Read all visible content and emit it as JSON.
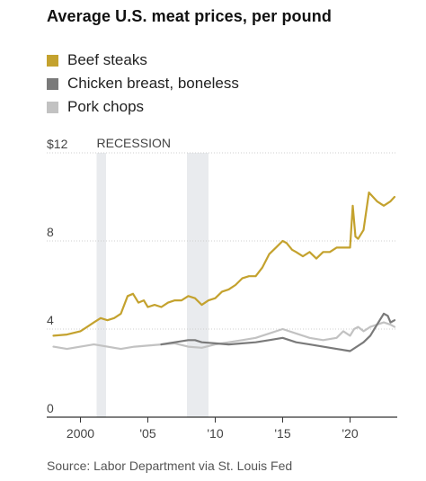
{
  "title": "Average U.S. meat prices, per pound",
  "source": "Source: Labor Department via St. Louis Fed",
  "legend": [
    {
      "label": "Beef steaks",
      "color": "#c4a22e"
    },
    {
      "label": "Chicken breast, boneless",
      "color": "#7a7a7a"
    },
    {
      "label": "Pork chops",
      "color": "#c2c2c2"
    }
  ],
  "chart_data": {
    "type": "line",
    "title": "Average U.S. meat prices, per pound",
    "xlabel": "",
    "ylabel": "",
    "xlim": [
      1997.5,
      2023.5
    ],
    "ylim": [
      0,
      12
    ],
    "y_ticks": [
      0,
      4,
      8,
      12
    ],
    "y_tick_labels": [
      "0",
      "4",
      "8",
      "$12"
    ],
    "x_ticks": [
      2000,
      2005,
      2010,
      2015,
      2020
    ],
    "x_tick_labels": [
      "2000",
      "'05",
      "'10",
      "'15",
      "'20"
    ],
    "grid": "horizontal",
    "recessions": [
      {
        "label": "RECESSION",
        "start": 2001.2,
        "end": 2001.9
      },
      {
        "label": "",
        "start": 2007.9,
        "end": 2009.5
      }
    ],
    "series": [
      {
        "name": "Beef steaks",
        "color": "#c4a22e",
        "x": [
          1998.0,
          1999.0,
          2000.0,
          2000.5,
          2001.0,
          2001.5,
          2002.0,
          2002.5,
          2003.0,
          2003.5,
          2003.9,
          2004.3,
          2004.7,
          2005.0,
          2005.5,
          2006.0,
          2006.5,
          2007.0,
          2007.5,
          2008.0,
          2008.5,
          2009.0,
          2009.5,
          2010.0,
          2010.5,
          2011.0,
          2011.5,
          2012.0,
          2012.5,
          2013.0,
          2013.5,
          2014.0,
          2014.5,
          2015.0,
          2015.3,
          2015.7,
          2016.0,
          2016.5,
          2017.0,
          2017.5,
          2018.0,
          2018.5,
          2019.0,
          2019.5,
          2020.0,
          2020.2,
          2020.4,
          2020.6,
          2021.0,
          2021.4,
          2021.7,
          2022.0,
          2022.5,
          2023.0,
          2023.3
        ],
        "values": [
          3.7,
          3.75,
          3.9,
          4.1,
          4.3,
          4.5,
          4.4,
          4.5,
          4.7,
          5.5,
          5.6,
          5.2,
          5.3,
          5.0,
          5.1,
          5.0,
          5.2,
          5.3,
          5.3,
          5.5,
          5.4,
          5.1,
          5.3,
          5.4,
          5.7,
          5.8,
          6.0,
          6.3,
          6.4,
          6.4,
          6.8,
          7.4,
          7.7,
          8.0,
          7.9,
          7.6,
          7.5,
          7.3,
          7.5,
          7.2,
          7.5,
          7.5,
          7.7,
          7.7,
          7.7,
          9.6,
          8.2,
          8.1,
          8.5,
          10.2,
          10.0,
          9.8,
          9.6,
          9.8,
          10.0
        ]
      },
      {
        "name": "Chicken breast, boneless",
        "color": "#7a7a7a",
        "x": [
          2006.0,
          2007.0,
          2008.0,
          2008.5,
          2009.0,
          2010.0,
          2011.0,
          2012.0,
          2013.0,
          2014.0,
          2015.0,
          2016.0,
          2017.0,
          2018.0,
          2019.0,
          2020.0,
          2021.0,
          2021.5,
          2022.0,
          2022.5,
          2022.8,
          2023.0,
          2023.3
        ],
        "values": [
          3.3,
          3.4,
          3.5,
          3.5,
          3.4,
          3.35,
          3.3,
          3.35,
          3.4,
          3.5,
          3.6,
          3.4,
          3.3,
          3.2,
          3.1,
          3.0,
          3.4,
          3.7,
          4.2,
          4.7,
          4.6,
          4.3,
          4.4
        ]
      },
      {
        "name": "Pork chops",
        "color": "#c2c2c2",
        "x": [
          1998.0,
          1999.0,
          2000.0,
          2001.0,
          2002.0,
          2003.0,
          2004.0,
          2005.0,
          2006.0,
          2007.0,
          2008.0,
          2009.0,
          2010.0,
          2011.0,
          2012.0,
          2013.0,
          2014.0,
          2015.0,
          2016.0,
          2017.0,
          2018.0,
          2019.0,
          2019.5,
          2020.0,
          2020.3,
          2020.6,
          2021.0,
          2021.5,
          2022.0,
          2022.5,
          2023.0,
          2023.3
        ],
        "values": [
          3.2,
          3.1,
          3.2,
          3.3,
          3.2,
          3.1,
          3.2,
          3.25,
          3.3,
          3.35,
          3.2,
          3.15,
          3.3,
          3.4,
          3.5,
          3.6,
          3.8,
          4.0,
          3.8,
          3.6,
          3.5,
          3.6,
          3.9,
          3.7,
          4.0,
          4.1,
          3.9,
          4.1,
          4.2,
          4.3,
          4.2,
          4.1
        ]
      }
    ]
  }
}
